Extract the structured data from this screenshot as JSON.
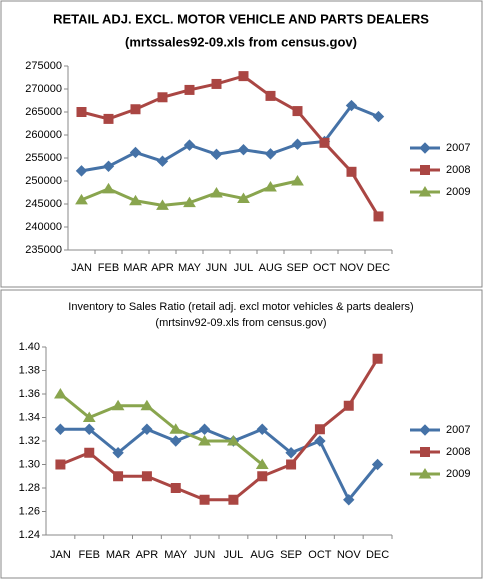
{
  "chart_data": [
    {
      "type": "line",
      "title": "RETAIL ADJ. EXCL. MOTOR VEHICLE AND PARTS DEALERS",
      "subtitle": "(mrtssales92-09.xls from census.gov)",
      "categories": [
        "JAN",
        "FEB",
        "MAR",
        "APR",
        "MAY",
        "JUN",
        "JUL",
        "AUG",
        "SEP",
        "OCT",
        "NOV",
        "DEC"
      ],
      "series": [
        {
          "name": "2007",
          "color": "#4572a7",
          "marker": "diamond",
          "values": [
            252200,
            253200,
            256200,
            254300,
            257800,
            255800,
            256800,
            255900,
            258000,
            258600,
            266400,
            264000
          ]
        },
        {
          "name": "2008",
          "color": "#aa4643",
          "marker": "square",
          "values": [
            265000,
            263500,
            265600,
            268200,
            269800,
            271100,
            272800,
            268500,
            265200,
            258300,
            252000,
            242300
          ]
        },
        {
          "name": "2009",
          "color": "#89a54e",
          "marker": "triangle",
          "values": [
            245900,
            248300,
            245700,
            244700,
            245300,
            247400,
            246200,
            248700,
            250000,
            null,
            null,
            null
          ]
        }
      ],
      "ylim": [
        235000,
        275000
      ],
      "yticks": [
        235000,
        240000,
        245000,
        250000,
        255000,
        260000,
        265000,
        270000,
        275000
      ],
      "legend": "right"
    },
    {
      "type": "line",
      "title": "Inventory to Sales Ratio (retail adj. excl motor vehicles & parts dealers)",
      "subtitle": "(mrtsinv92-09.xls from census.gov)",
      "categories": [
        "JAN",
        "FEB",
        "MAR",
        "APR",
        "MAY",
        "JUN",
        "JUL",
        "AUG",
        "SEP",
        "OCT",
        "NOV",
        "DEC"
      ],
      "series": [
        {
          "name": "2007",
          "color": "#4572a7",
          "marker": "diamond",
          "values": [
            1.33,
            1.33,
            1.31,
            1.33,
            1.32,
            1.33,
            1.32,
            1.33,
            1.31,
            1.32,
            1.27,
            1.3
          ]
        },
        {
          "name": "2008",
          "color": "#aa4643",
          "marker": "square",
          "values": [
            1.3,
            1.31,
            1.29,
            1.29,
            1.28,
            1.27,
            1.27,
            1.29,
            1.3,
            1.33,
            1.35,
            1.39
          ]
        },
        {
          "name": "2009",
          "color": "#89a54e",
          "marker": "triangle",
          "values": [
            1.36,
            1.34,
            1.35,
            1.35,
            1.33,
            1.32,
            1.32,
            1.3,
            null,
            null,
            null,
            null
          ]
        }
      ],
      "ylim": [
        1.24,
        1.4
      ],
      "yticks": [
        1.24,
        1.26,
        1.28,
        {
          "value": 1.3,
          "label": "1.30"
        },
        1.32,
        1.34,
        1.36,
        1.38,
        {
          "value": 1.4,
          "label": "1.40"
        }
      ],
      "legend": "right"
    }
  ]
}
